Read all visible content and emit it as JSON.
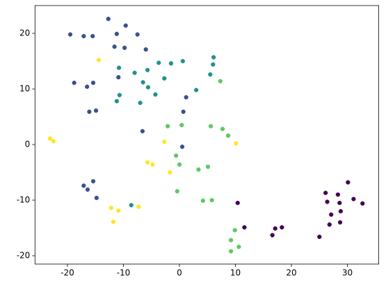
{
  "chart_data": {
    "type": "scatter",
    "xlim": [
      -25.8,
      35.6
    ],
    "ylim": [
      -21.5,
      25
    ],
    "xticks": [
      -20,
      -10,
      0,
      10,
      20,
      30
    ],
    "yticks": [
      -20,
      -10,
      0,
      10,
      20
    ],
    "grid": false,
    "series": [
      {
        "color": "#3b528b",
        "x": [
          -12.7,
          -9.6,
          -19.5,
          -17.1,
          -15.5,
          -11.2,
          -7.5,
          -11.6,
          -9.8,
          -6.0,
          -18.8,
          -16.5,
          -15.4,
          -10.9,
          1.2,
          0.7,
          -16.1,
          -14.9,
          -6.6,
          0.5,
          -17.1,
          -16.4,
          -15.4,
          -14.8
        ],
        "values": [
          22.6,
          21.4,
          19.8,
          19.5,
          19.5,
          19.9,
          19.8,
          17.6,
          17.4,
          17.1,
          11.1,
          10.4,
          11.1,
          12.1,
          8.5,
          5.9,
          5.9,
          6.1,
          2.4,
          -0.4,
          -7.4,
          -8.1,
          -6.6,
          -9.6
        ]
      },
      {
        "color": "#21918c",
        "x": [
          6.1,
          6.0,
          0.6,
          -1.5,
          -3.7,
          -10.8,
          -5.7,
          -8.0,
          5.5,
          -2.7,
          -6.5,
          -5.6,
          -4.3,
          3.0,
          -10.7,
          -11.2,
          -7.0,
          -8.6
        ],
        "values": [
          15.7,
          14.4,
          15.0,
          14.6,
          14.7,
          13.8,
          13.4,
          12.9,
          12.6,
          11.9,
          11.2,
          10.3,
          9.0,
          9.8,
          8.9,
          7.8,
          7.5,
          -10.9
        ]
      },
      {
        "color": "#5ec962",
        "x": [
          7.3,
          0.4,
          -2.1,
          5.6,
          7.7,
          8.7,
          -0.6,
          0.0,
          5.1,
          3.4,
          -0.4,
          4.2,
          5.8,
          9.9,
          10.6,
          9.2,
          9.2
        ],
        "values": [
          11.4,
          3.5,
          3.3,
          3.3,
          2.8,
          1.6,
          -2.0,
          -3.6,
          -4.0,
          -4.5,
          -8.4,
          -10.1,
          -10.0,
          -15.4,
          -18.4,
          -17.2,
          -19.2
        ]
      },
      {
        "color": "#fde725",
        "x": [
          -14.4,
          -23.1,
          -22.5,
          -2.7,
          10.1,
          -5.7,
          -4.8,
          -1.7,
          -12.2,
          -10.9,
          -7.3,
          -11.8
        ],
        "values": [
          15.2,
          1.1,
          0.6,
          0.5,
          0.2,
          -3.2,
          -3.6,
          -5.0,
          -11.4,
          -11.9,
          -11.2,
          -13.9
        ]
      },
      {
        "color": "#440154",
        "x": [
          10.4,
          11.6,
          17.1,
          18.3,
          16.6,
          25.0,
          30.1,
          26.1,
          28.3,
          26.4,
          28.6,
          31.1,
          32.7,
          27.1,
          28.8,
          26.8,
          28.7
        ],
        "values": [
          -10.5,
          -14.9,
          -15.1,
          -14.9,
          -16.3,
          -16.6,
          -6.8,
          -8.7,
          -9.0,
          -10.3,
          -10.5,
          -9.8,
          -10.6,
          -12.6,
          -12.0,
          -14.4,
          -14.0
        ]
      }
    ]
  }
}
